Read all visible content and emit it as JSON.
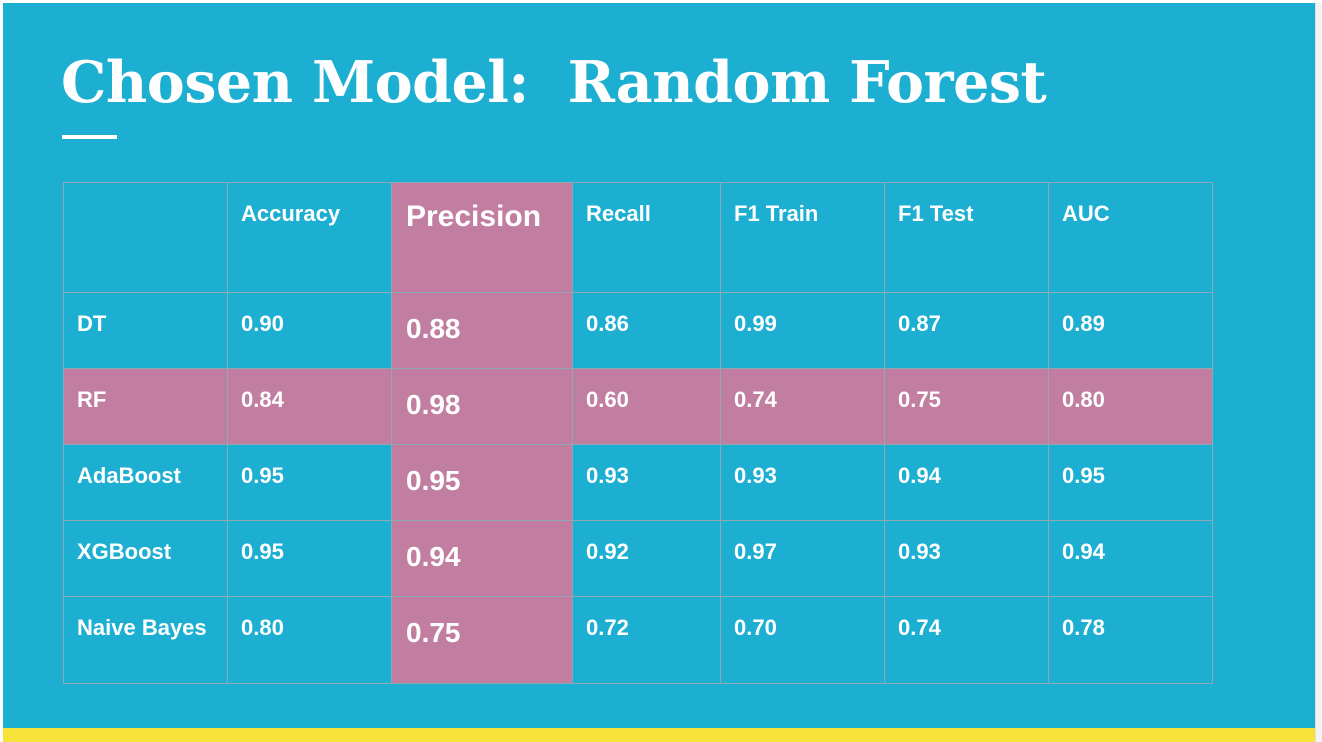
{
  "slide": {
    "title": "Chosen Model:  Random Forest"
  },
  "table": {
    "columns": [
      "",
      "Accuracy",
      "Precision",
      "Recall",
      "F1 Train",
      "F1 Test",
      "AUC"
    ],
    "rows": [
      {
        "model": "DT",
        "values": [
          "0.90",
          "0.88",
          "0.86",
          "0.99",
          "0.87",
          "0.89"
        ]
      },
      {
        "model": "RF",
        "values": [
          "0.84",
          "0.98",
          "0.60",
          "0.74",
          "0.75",
          "0.80"
        ]
      },
      {
        "model": "AdaBoost",
        "values": [
          "0.95",
          "0.95",
          "0.93",
          "0.93",
          "0.94",
          "0.95"
        ]
      },
      {
        "model": "XGBoost",
        "values": [
          "0.95",
          "0.94",
          "0.92",
          "0.97",
          "0.93",
          "0.94"
        ]
      },
      {
        "model": "Naive Bayes",
        "values": [
          "0.80",
          "0.75",
          "0.72",
          "0.70",
          "0.74",
          "0.78"
        ]
      }
    ]
  },
  "colors": {
    "background": "#1cafd2",
    "highlight": "#c27ea0",
    "accent_bar": "#f7e23a",
    "text": "#ffffff"
  }
}
